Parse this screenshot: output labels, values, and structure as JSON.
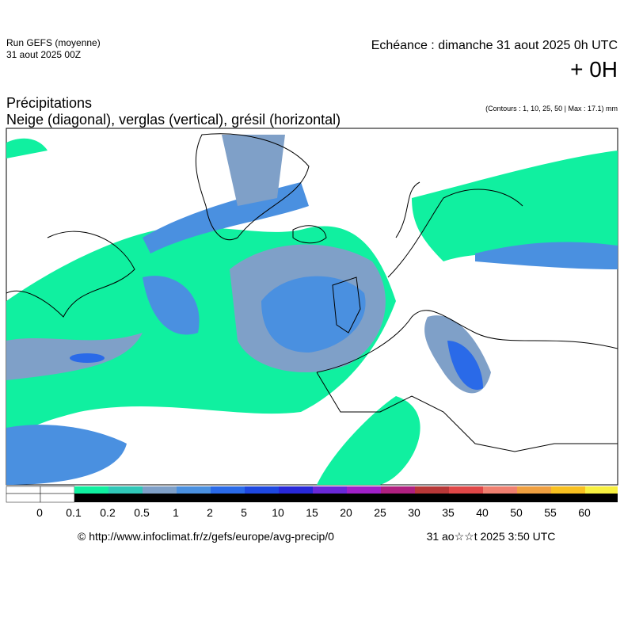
{
  "header": {
    "run": "Run GEFS (moyenne)",
    "run_date": "31 aout 2025 00Z",
    "valid": "Echéance : dimanche 31 aout 2025 0h UTC",
    "lead": "+ 0H",
    "title": "Précipitations",
    "subtitle": "Neige (diagonal), verglas (vertical), grésil (horizontal)",
    "contours": "(Contours : 1, 10, 25, 50 | Max : 17.1) mm"
  },
  "legend": {
    "labels": [
      "0",
      "0.1",
      "0.2",
      "0.5",
      "1",
      "2",
      "5",
      "10",
      "15",
      "20",
      "25",
      "30",
      "35",
      "40",
      "50",
      "55",
      "60"
    ],
    "colors": [
      "#ffffff",
      "#ffffff",
      "#10f0a0",
      "#30c8b8",
      "#7fa0c8",
      "#4a90e0",
      "#2a6ae8",
      "#1e48e0",
      "#2828d8",
      "#6a28d8",
      "#a020c8",
      "#b02080",
      "#b83838",
      "#e04848",
      "#f08070",
      "#f0a040",
      "#f8c020",
      "#f8f040"
    ]
  },
  "footer": {
    "source": "© http://www.infoclimat.fr/z/gefs/europe/avg-precip/0",
    "generated": "31 ao☆☆t 2025  3:50 UTC"
  }
}
